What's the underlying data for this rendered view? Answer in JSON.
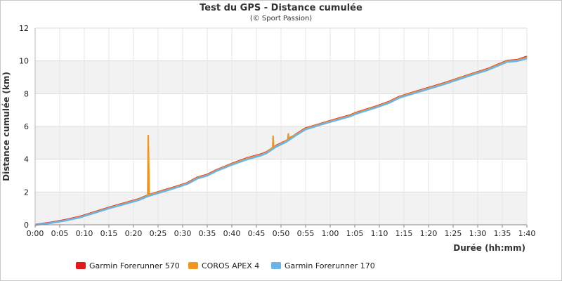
{
  "chart_data": {
    "type": "line",
    "title": "Test du GPS - Distance cumulée",
    "subtitle": "(© Sport Passion)",
    "xlabel": "Durée (hh:mm)",
    "ylabel": "Distance cumulée (km)",
    "x_unit": "minutes",
    "xlim": [
      0,
      100
    ],
    "ylim": [
      0,
      12
    ],
    "x_ticks": [
      {
        "value": 0,
        "label": "0:00"
      },
      {
        "value": 5,
        "label": "0:05"
      },
      {
        "value": 10,
        "label": "0:10"
      },
      {
        "value": 15,
        "label": "0:15"
      },
      {
        "value": 20,
        "label": "0:20"
      },
      {
        "value": 25,
        "label": "0:25"
      },
      {
        "value": 30,
        "label": "0:30"
      },
      {
        "value": 35,
        "label": "0:35"
      },
      {
        "value": 40,
        "label": "0:40"
      },
      {
        "value": 45,
        "label": "0:45"
      },
      {
        "value": 50,
        "label": "0:50"
      },
      {
        "value": 55,
        "label": "0:55"
      },
      {
        "value": 60,
        "label": "1:00"
      },
      {
        "value": 65,
        "label": "1:05"
      },
      {
        "value": 70,
        "label": "1:10"
      },
      {
        "value": 75,
        "label": "1:15"
      },
      {
        "value": 80,
        "label": "1:20"
      },
      {
        "value": 85,
        "label": "1:25"
      },
      {
        "value": 90,
        "label": "1:30"
      },
      {
        "value": 95,
        "label": "1:35"
      },
      {
        "value": 100,
        "label": "1:40"
      }
    ],
    "y_ticks": [
      {
        "value": 0,
        "label": "0"
      },
      {
        "value": 2,
        "label": "2"
      },
      {
        "value": 4,
        "label": "4"
      },
      {
        "value": 6,
        "label": "6"
      },
      {
        "value": 8,
        "label": "8"
      },
      {
        "value": 10,
        "label": "10"
      },
      {
        "value": 12,
        "label": "12"
      }
    ],
    "grid": true,
    "banded_background": true,
    "legend_position": "bottom",
    "series": [
      {
        "name": "Garmin Forerunner 570",
        "color": "#e31a1c",
        "points": [
          [
            0,
            0
          ],
          [
            3,
            0.12
          ],
          [
            6,
            0.28
          ],
          [
            9,
            0.48
          ],
          [
            12,
            0.76
          ],
          [
            15,
            1.04
          ],
          [
            18,
            1.3
          ],
          [
            21,
            1.55
          ],
          [
            23,
            1.8
          ],
          [
            26,
            2.08
          ],
          [
            29,
            2.35
          ],
          [
            31,
            2.55
          ],
          [
            33,
            2.88
          ],
          [
            35,
            3.05
          ],
          [
            37,
            3.35
          ],
          [
            40,
            3.72
          ],
          [
            43,
            4.05
          ],
          [
            46,
            4.3
          ],
          [
            47,
            4.42
          ],
          [
            49,
            4.82
          ],
          [
            51,
            5.1
          ],
          [
            53,
            5.5
          ],
          [
            55,
            5.88
          ],
          [
            58,
            6.15
          ],
          [
            61,
            6.42
          ],
          [
            64,
            6.67
          ],
          [
            65,
            6.8
          ],
          [
            67,
            7.0
          ],
          [
            69,
            7.18
          ],
          [
            72,
            7.5
          ],
          [
            74,
            7.8
          ],
          [
            77,
            8.08
          ],
          [
            80,
            8.35
          ],
          [
            83,
            8.62
          ],
          [
            86,
            8.92
          ],
          [
            89,
            9.22
          ],
          [
            92,
            9.5
          ],
          [
            94,
            9.75
          ],
          [
            96,
            10.0
          ],
          [
            98,
            10.05
          ],
          [
            100,
            10.25
          ]
        ]
      },
      {
        "name": "COROS APEX 4",
        "color": "#f0961e",
        "points": [
          [
            0,
            0
          ],
          [
            3,
            0.11
          ],
          [
            6,
            0.27
          ],
          [
            9,
            0.47
          ],
          [
            12,
            0.75
          ],
          [
            15,
            1.03
          ],
          [
            18,
            1.29
          ],
          [
            21,
            1.54
          ],
          [
            22.9,
            1.78
          ],
          [
            23.0,
            5.45
          ],
          [
            23.1,
            3.6
          ],
          [
            23.2,
            1.82
          ],
          [
            26,
            2.07
          ],
          [
            29,
            2.34
          ],
          [
            31,
            2.54
          ],
          [
            33,
            2.87
          ],
          [
            35,
            3.04
          ],
          [
            37,
            3.34
          ],
          [
            40,
            3.71
          ],
          [
            43,
            4.04
          ],
          [
            46,
            4.29
          ],
          [
            47,
            4.41
          ],
          [
            48.3,
            4.72
          ],
          [
            48.4,
            5.4
          ],
          [
            48.5,
            4.78
          ],
          [
            49,
            4.81
          ],
          [
            51,
            5.1
          ],
          [
            51.4,
            5.2
          ],
          [
            51.5,
            5.55
          ],
          [
            51.6,
            5.3
          ],
          [
            53,
            5.5
          ],
          [
            55,
            5.87
          ],
          [
            58,
            6.14
          ],
          [
            61,
            6.41
          ],
          [
            64,
            6.66
          ],
          [
            65,
            6.79
          ],
          [
            67,
            6.99
          ],
          [
            69,
            7.17
          ],
          [
            72,
            7.49
          ],
          [
            74,
            7.79
          ],
          [
            77,
            8.07
          ],
          [
            80,
            8.34
          ],
          [
            83,
            8.61
          ],
          [
            86,
            8.91
          ],
          [
            89,
            9.21
          ],
          [
            92,
            9.49
          ],
          [
            94,
            9.74
          ],
          [
            96,
            9.99
          ],
          [
            98,
            10.04
          ],
          [
            100,
            10.22
          ]
        ]
      },
      {
        "name": "Garmin Forerunner 170",
        "color": "#6cb4e4",
        "points": [
          [
            0,
            0
          ],
          [
            3,
            0.1
          ],
          [
            6,
            0.25
          ],
          [
            9,
            0.44
          ],
          [
            12,
            0.72
          ],
          [
            15,
            1.0
          ],
          [
            18,
            1.25
          ],
          [
            21,
            1.5
          ],
          [
            23,
            1.75
          ],
          [
            26,
            2.02
          ],
          [
            29,
            2.3
          ],
          [
            31,
            2.5
          ],
          [
            33,
            2.82
          ],
          [
            35,
            3.0
          ],
          [
            37,
            3.3
          ],
          [
            40,
            3.66
          ],
          [
            43,
            3.98
          ],
          [
            46,
            4.24
          ],
          [
            47,
            4.36
          ],
          [
            49,
            4.76
          ],
          [
            51,
            5.05
          ],
          [
            53,
            5.45
          ],
          [
            55,
            5.82
          ],
          [
            58,
            6.1
          ],
          [
            61,
            6.36
          ],
          [
            64,
            6.61
          ],
          [
            65,
            6.74
          ],
          [
            67,
            6.94
          ],
          [
            69,
            7.12
          ],
          [
            72,
            7.44
          ],
          [
            74,
            7.74
          ],
          [
            77,
            8.02
          ],
          [
            80,
            8.29
          ],
          [
            83,
            8.56
          ],
          [
            86,
            8.86
          ],
          [
            89,
            9.16
          ],
          [
            92,
            9.44
          ],
          [
            94,
            9.69
          ],
          [
            96,
            9.94
          ],
          [
            98,
            9.99
          ],
          [
            100,
            10.15
          ]
        ]
      }
    ]
  }
}
